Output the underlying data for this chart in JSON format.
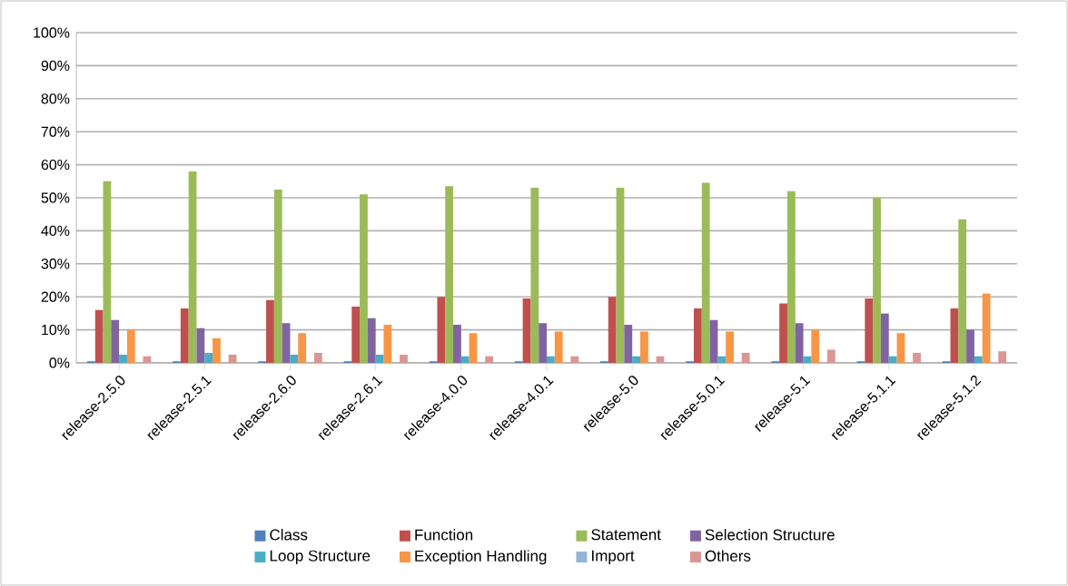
{
  "chart_data": {
    "type": "bar",
    "categories": [
      "release-2.5.0",
      "release-2.5.1",
      "release-2.6.0",
      "release-2.6.1",
      "release-4.0.0",
      "release-4.0.1",
      "release-5.0",
      "release-5.0.1",
      "release-5.1",
      "release-5.1.1",
      "release-5.1.2"
    ],
    "series": [
      {
        "name": "Class",
        "color": "#4f81bd",
        "values": [
          0.5,
          0.5,
          0.5,
          0.5,
          0.5,
          0.5,
          0.5,
          0.5,
          0.5,
          0.5,
          0.5
        ]
      },
      {
        "name": "Function",
        "color": "#c0504d",
        "values": [
          16,
          16.5,
          19,
          17,
          20,
          19.5,
          20,
          16.5,
          18,
          19.5,
          16.5
        ]
      },
      {
        "name": "Statement",
        "color": "#9bbb59",
        "values": [
          55,
          58,
          52.5,
          51,
          53.5,
          53,
          53,
          54.5,
          52,
          50,
          43.5
        ]
      },
      {
        "name": "Selection Structure",
        "color": "#8064a2",
        "values": [
          13,
          10.5,
          12,
          13.5,
          11.5,
          12,
          11.5,
          13,
          12,
          15,
          10
        ]
      },
      {
        "name": "Loop Structure",
        "color": "#4bacc6",
        "values": [
          2.5,
          3,
          2.5,
          2.5,
          2,
          2,
          2,
          2,
          2,
          2,
          2
        ]
      },
      {
        "name": "Exception Handling",
        "color": "#f79646",
        "values": [
          10,
          7.5,
          9,
          11.5,
          9,
          9.5,
          9.5,
          9.5,
          10,
          9,
          21
        ]
      },
      {
        "name": "Import",
        "color": "#95b3d7",
        "values": [
          0,
          0,
          0,
          0,
          0,
          0,
          0,
          0,
          0,
          0,
          0
        ]
      },
      {
        "name": "Others",
        "color": "#d99694",
        "values": [
          2,
          2.5,
          3,
          2.5,
          2,
          2,
          2,
          3,
          4,
          3,
          3.5
        ]
      }
    ],
    "ylim": [
      0,
      100
    ],
    "yticks": [
      {
        "value": 0,
        "label": "0%"
      },
      {
        "value": 10,
        "label": "10%"
      },
      {
        "value": 20,
        "label": "20%"
      },
      {
        "value": 30,
        "label": "30%"
      },
      {
        "value": 40,
        "label": "40%"
      },
      {
        "value": 50,
        "label": "50%"
      },
      {
        "value": 60,
        "label": "60%"
      },
      {
        "value": 70,
        "label": "70%"
      },
      {
        "value": 80,
        "label": "80%"
      },
      {
        "value": 90,
        "label": "90%"
      },
      {
        "value": 100,
        "label": "100%"
      }
    ],
    "grid": "y",
    "legend": "bottom"
  }
}
